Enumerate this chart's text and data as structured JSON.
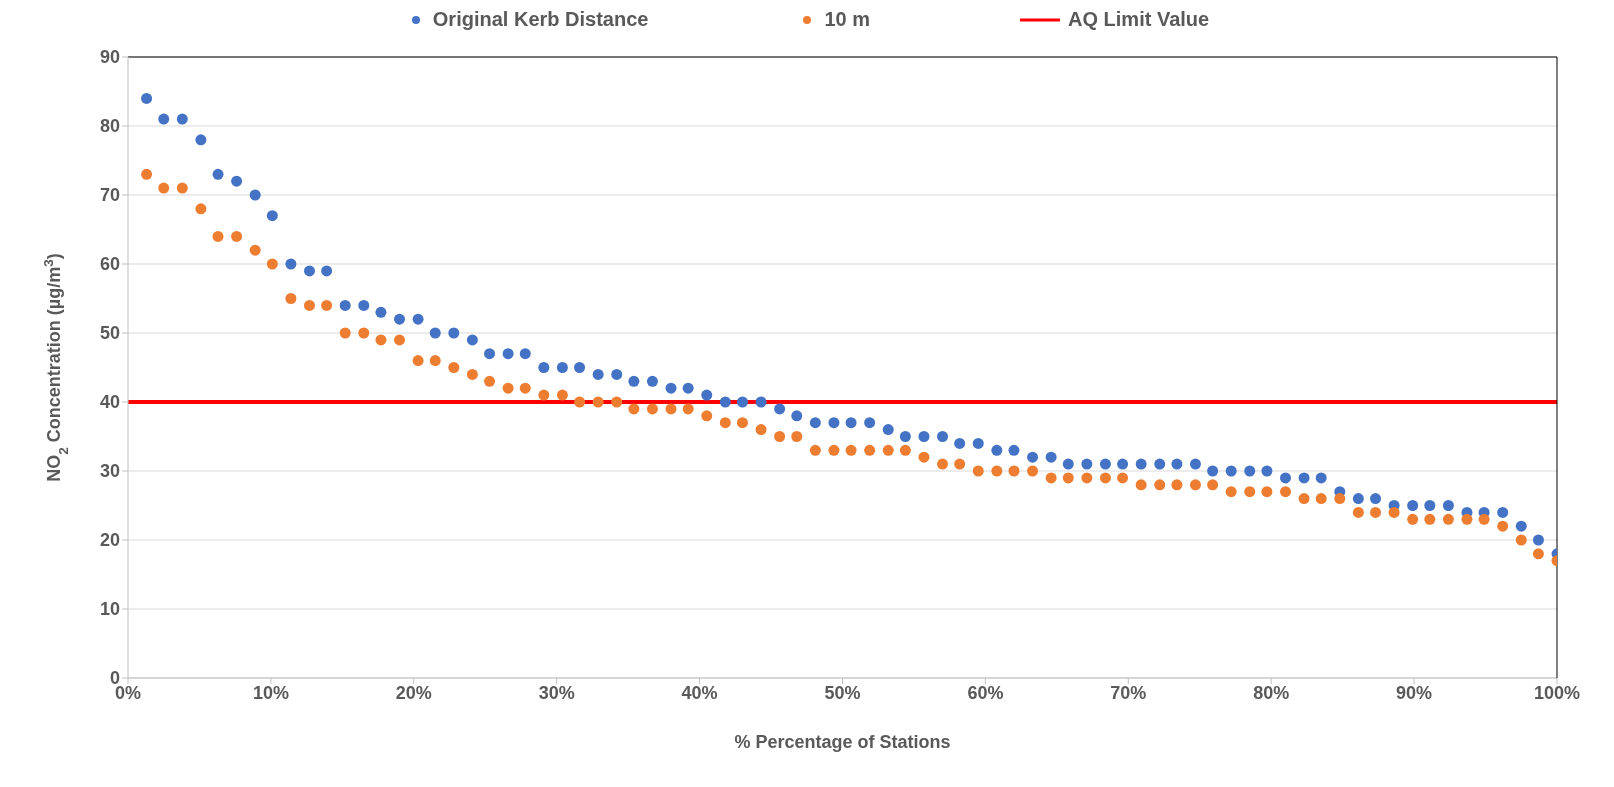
{
  "chart_data": {
    "type": "scatter",
    "xlabel": "% Percentage of Stations",
    "ylabel": "NO$_{2}$ Concentration (µg/m$^{3}$)",
    "x": [
      1.3,
      2.5,
      3.8,
      5.1,
      6.3,
      7.6,
      8.9,
      10.1,
      11.4,
      12.7,
      13.9,
      15.2,
      16.5,
      17.7,
      19.0,
      20.3,
      21.5,
      22.8,
      24.1,
      25.3,
      26.6,
      27.8,
      29.1,
      30.4,
      31.6,
      32.9,
      34.2,
      35.4,
      36.7,
      38.0,
      39.2,
      40.5,
      41.8,
      43.0,
      44.3,
      45.6,
      46.8,
      48.1,
      49.4,
      50.6,
      51.9,
      53.2,
      54.4,
      55.7,
      57.0,
      58.2,
      59.5,
      60.8,
      62.0,
      63.3,
      64.6,
      65.8,
      67.1,
      68.4,
      69.6,
      70.9,
      72.2,
      73.4,
      74.7,
      75.9,
      77.2,
      78.5,
      79.7,
      81.0,
      82.3,
      83.5,
      84.8,
      86.1,
      87.3,
      88.6,
      89.9,
      91.1,
      92.4,
      93.7,
      94.9,
      96.2,
      97.5,
      98.7,
      100
    ],
    "series": [
      {
        "name": "Original Kerb Distance",
        "color": "#4472c4",
        "values": [
          84,
          81,
          81,
          78,
          73,
          72,
          70,
          67,
          60,
          59,
          59,
          54,
          54,
          53,
          52,
          52,
          50,
          50,
          49,
          47,
          47,
          47,
          45,
          45,
          45,
          44,
          44,
          43,
          43,
          42,
          42,
          41,
          40,
          40,
          40,
          39,
          38,
          37,
          37,
          37,
          37,
          36,
          35,
          35,
          35,
          34,
          34,
          33,
          33,
          32,
          32,
          31,
          31,
          31,
          31,
          31,
          31,
          31,
          31,
          30,
          30,
          30,
          30,
          29,
          29,
          29,
          27,
          26,
          26,
          25,
          25,
          25,
          25,
          24,
          24,
          24,
          22,
          20,
          18
        ]
      },
      {
        "name": "10 m",
        "color": "#ed7d31",
        "values": [
          73,
          71,
          71,
          68,
          64,
          64,
          62,
          60,
          55,
          54,
          54,
          50,
          50,
          49,
          49,
          46,
          46,
          45,
          44,
          43,
          42,
          42,
          41,
          41,
          40,
          40,
          40,
          39,
          39,
          39,
          39,
          38,
          37,
          37,
          36,
          35,
          35,
          33,
          33,
          33,
          33,
          33,
          33,
          32,
          31,
          31,
          30,
          30,
          30,
          30,
          29,
          29,
          29,
          29,
          29,
          28,
          28,
          28,
          28,
          28,
          27,
          27,
          27,
          27,
          26,
          26,
          26,
          24,
          24,
          24,
          23,
          23,
          23,
          23,
          23,
          22,
          20,
          18,
          17
        ]
      }
    ],
    "ref_lines": [
      {
        "axis": "y",
        "value": 40,
        "label": "AQ Limit Value",
        "color": "#ff0000"
      }
    ],
    "xlim": [
      0,
      100
    ],
    "xticks": [
      {
        "value": 0,
        "label": "0%"
      },
      {
        "value": 10,
        "label": "10%"
      },
      {
        "value": 20,
        "label": "20%"
      },
      {
        "value": 30,
        "label": "30%"
      },
      {
        "value": 40,
        "label": "40%"
      },
      {
        "value": 50,
        "label": "50%"
      },
      {
        "value": 60,
        "label": "60%"
      },
      {
        "value": 70,
        "label": "70%"
      },
      {
        "value": 80,
        "label": "80%"
      },
      {
        "value": 90,
        "label": "90%"
      },
      {
        "value": 100,
        "label": "100%"
      }
    ],
    "ylim": [
      0,
      90
    ],
    "yticks": [
      0,
      10,
      20,
      30,
      40,
      50,
      60,
      70,
      80,
      90
    ],
    "grid": "y",
    "legend": "top",
    "marker": "circle"
  }
}
